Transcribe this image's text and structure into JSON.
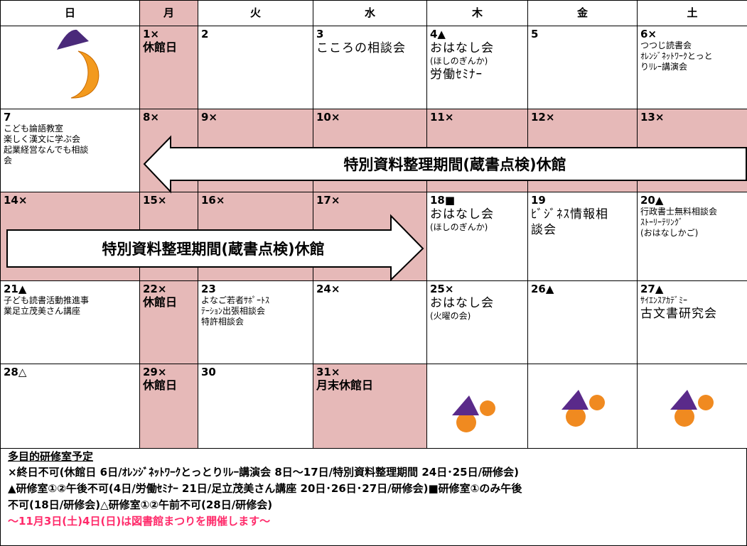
{
  "header": {
    "days": [
      "日",
      "月",
      "火",
      "水",
      "木",
      "金",
      "土"
    ]
  },
  "weeks": [
    [
      {
        "lines": []
      },
      {
        "lines": [
          "1×",
          "休館日"
        ]
      },
      {
        "lines": [
          "2"
        ]
      },
      {
        "lines": [
          "3",
          "こころの相談会"
        ]
      },
      {
        "lines": [
          "4▲",
          "おはなし会",
          "(ほしのぎんか)",
          "労働ｾﾐﾅｰ"
        ]
      },
      {
        "lines": [
          "5"
        ]
      },
      {
        "lines": [
          "6×",
          "つつじ読書会",
          "ｵﾚﾝｼﾞﾈｯﾄﾜｰｸとっと",
          "りﾘﾚｰ講演会"
        ]
      }
    ],
    [
      {
        "lines": [
          "7",
          "こども論語教室",
          "楽しく漢文に学ぶ会",
          "起業経営なんでも相談",
          "会"
        ]
      },
      {
        "lines": [
          "8×"
        ]
      },
      {
        "lines": [
          "9×"
        ]
      },
      {
        "lines": [
          "10×"
        ]
      },
      {
        "lines": [
          "11×"
        ]
      },
      {
        "lines": [
          "12×"
        ]
      },
      {
        "lines": [
          "13×"
        ]
      }
    ],
    [
      {
        "lines": [
          "14×"
        ]
      },
      {
        "lines": [
          "15×"
        ]
      },
      {
        "lines": [
          "16×"
        ]
      },
      {
        "lines": [
          "17×"
        ]
      },
      {
        "lines": [
          "18■",
          "おはなし会",
          "(ほしのぎんか)"
        ]
      },
      {
        "lines": [
          "19",
          "ﾋﾞｼﾞﾈｽ情報相",
          "談会"
        ]
      },
      {
        "lines": [
          "20▲",
          "行政書士無料相談会",
          "ｽﾄｰﾘｰﾃﾘﾝｸﾞ",
          "(おはなしかご)"
        ]
      }
    ],
    [
      {
        "lines": [
          "21▲",
          "子ども読書活動推進事",
          "業足立茂美さん講座"
        ]
      },
      {
        "lines": [
          "22×",
          "休館日"
        ]
      },
      {
        "lines": [
          "23",
          "よなご若者ｻﾎﾟｰﾄｽ",
          "ﾃｰｼｮﾝ出張相談会",
          "特許相談会"
        ]
      },
      {
        "lines": [
          "24×"
        ]
      },
      {
        "lines": [
          "25×",
          "おはなし会",
          "(火曜の会)"
        ]
      },
      {
        "lines": [
          "26▲"
        ]
      },
      {
        "lines": [
          "27▲",
          "ｻｲｴﾝｽｱｶﾃﾞﾐｰ",
          "古文書研究会"
        ]
      }
    ],
    [
      {
        "lines": [
          "28△"
        ]
      },
      {
        "lines": [
          "29×",
          "休館日"
        ]
      },
      {
        "lines": [
          "30"
        ]
      },
      {
        "lines": [
          "31×",
          "月末休館日"
        ]
      },
      {
        "lines": []
      },
      {
        "lines": []
      },
      {
        "lines": []
      }
    ]
  ],
  "arrows": [
    {
      "label": "特別資料整理期間(蔵書点検)休館"
    },
    {
      "label": "特別資料整理期間(蔵書点検)休館"
    }
  ],
  "notes": {
    "title": "多目的研修室予定",
    "lines": [
      "×終日不可(休館日 6日/ｵﾚﾝｼﾞﾈｯﾄﾜｰｸとっとりﾘﾚｰ講演会 8日～17日/特別資料整理期間 24日･25日/研修会)",
      "▲研修室①②午後不可(4日/労働ｾﾐﾅｰ 21日/足立茂美さん講座 20日･26日･27日/研修会)■研修室①のみ午後",
      "不可(18日/研修会)△研修室①②午前不可(28日/研修会)"
    ],
    "event": "～11月3日(土)4日(日)は図書館まつりを開催します～"
  }
}
